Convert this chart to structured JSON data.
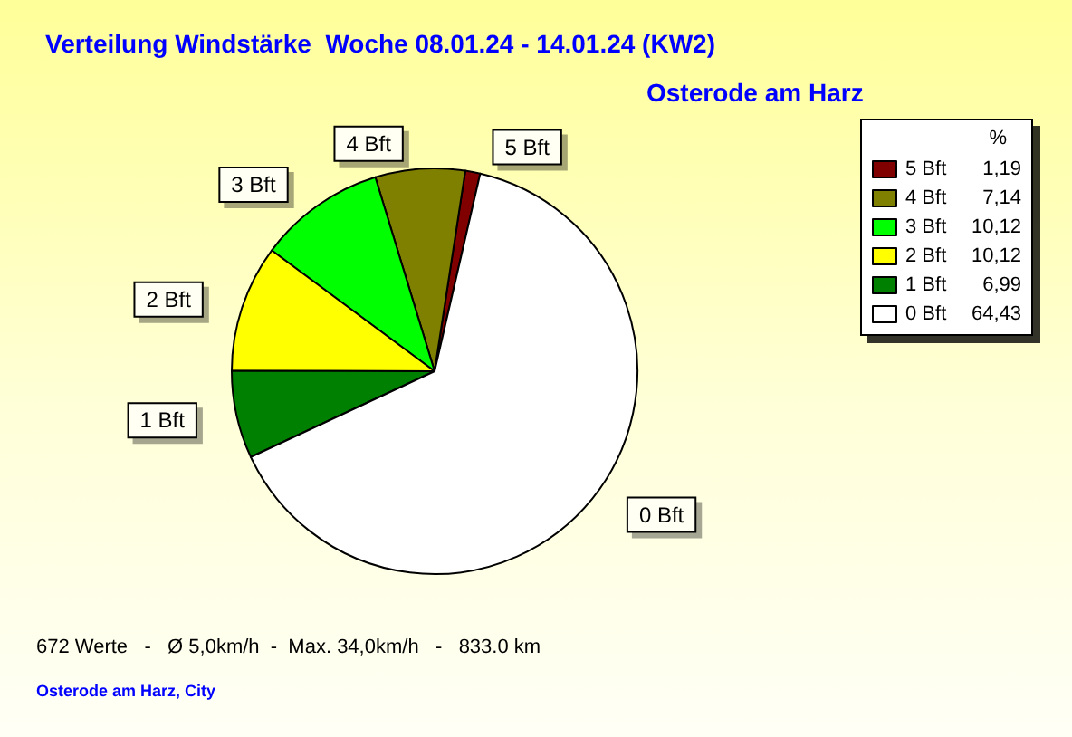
{
  "chart_data": {
    "type": "pie",
    "title": "Verteilung Windstärke  Woche 08.01.24 - 14.01.24 (KW2)",
    "subtitle": "Osterode am Harz",
    "categories": [
      "5 Bft",
      "4 Bft",
      "3 Bft",
      "2 Bft",
      "1 Bft",
      "0 Bft"
    ],
    "values": [
      1.19,
      7.14,
      10.12,
      10.12,
      6.99,
      64.43
    ],
    "value_labels": [
      "1,19",
      "7,14",
      "10,12",
      "10,12",
      "6,99",
      "64,43"
    ],
    "colors": [
      "#800000",
      "#808000",
      "#00ff00",
      "#ffff00",
      "#008000",
      "#ffffff"
    ],
    "legend": "top right",
    "legend_title": "%",
    "annotations": [
      "672 Werte   -   Ø 5,0km/h  -  Max. 34,0km/h   -   833.0 km",
      "Osterode am Harz, City"
    ]
  }
}
